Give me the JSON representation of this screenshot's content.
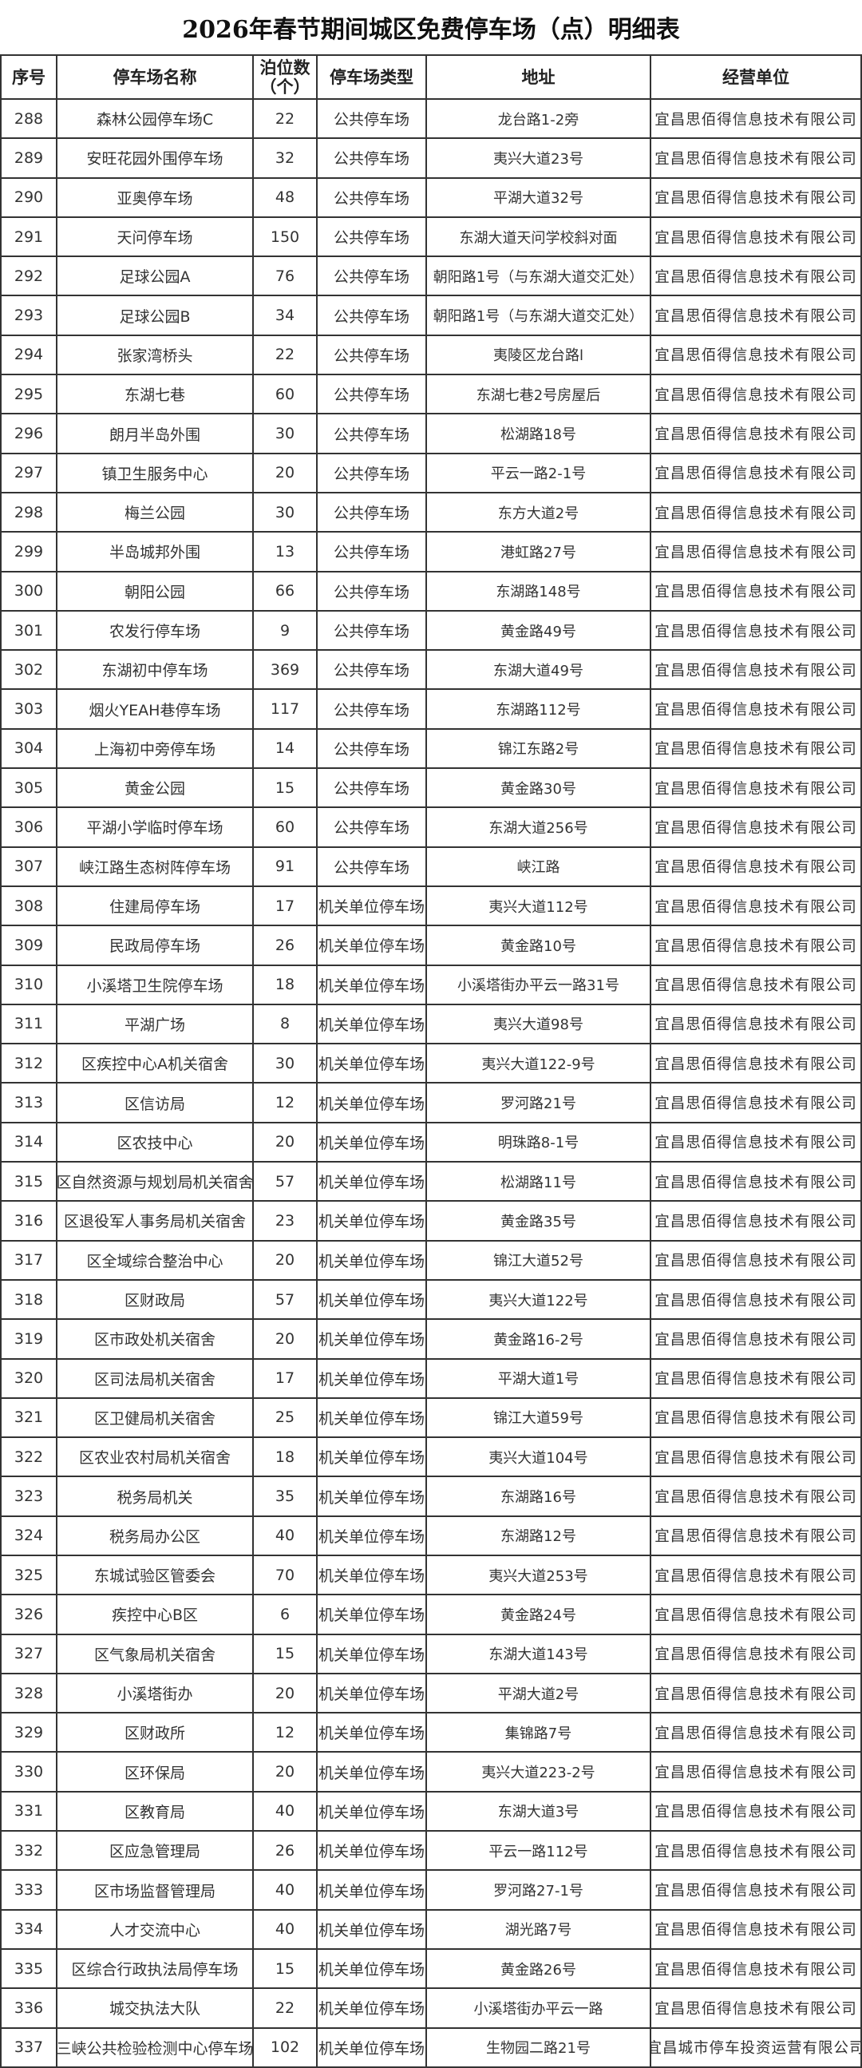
{
  "title": "2026年春节期间城区免费停车场（点）明细表",
  "headers": {
    "index": "序号",
    "name": "停车场名称",
    "spaces_line1": "泊位数",
    "spaces_line2": "（个）",
    "type": "停车场类型",
    "address": "地址",
    "operator": "经营单位"
  },
  "rows": [
    [
      "288",
      "森林公园停车场C",
      "22",
      "公共停车场",
      "龙台路1-2旁",
      "宜昌思佰得信息技术有限公司"
    ],
    [
      "289",
      "安旺花园外围停车场",
      "32",
      "公共停车场",
      "夷兴大道23号",
      "宜昌思佰得信息技术有限公司"
    ],
    [
      "290",
      "亚奥停车场",
      "48",
      "公共停车场",
      "平湖大道32号",
      "宜昌思佰得信息技术有限公司"
    ],
    [
      "291",
      "天问停车场",
      "150",
      "公共停车场",
      "东湖大道天问学校斜对面",
      "宜昌思佰得信息技术有限公司"
    ],
    [
      "292",
      "足球公园A",
      "76",
      "公共停车场",
      "朝阳路1号（与东湖大道交汇处）",
      "宜昌思佰得信息技术有限公司"
    ],
    [
      "293",
      "足球公园B",
      "34",
      "公共停车场",
      "朝阳路1号（与东湖大道交汇处）",
      "宜昌思佰得信息技术有限公司"
    ],
    [
      "294",
      "张家湾桥头",
      "22",
      "公共停车场",
      "夷陵区龙台路l",
      "宜昌思佰得信息技术有限公司"
    ],
    [
      "295",
      "东湖七巷",
      "60",
      "公共停车场",
      "东湖七巷2号房屋后",
      "宜昌思佰得信息技术有限公司"
    ],
    [
      "296",
      "朗月半岛外围",
      "30",
      "公共停车场",
      "松湖路18号",
      "宜昌思佰得信息技术有限公司"
    ],
    [
      "297",
      "镇卫生服务中心",
      "20",
      "公共停车场",
      "平云一路2-1号",
      "宜昌思佰得信息技术有限公司"
    ],
    [
      "298",
      "梅兰公园",
      "30",
      "公共停车场",
      "东方大道2号",
      "宜昌思佰得信息技术有限公司"
    ],
    [
      "299",
      "半岛城邦外围",
      "13",
      "公共停车场",
      "港虹路27号",
      "宜昌思佰得信息技术有限公司"
    ],
    [
      "300",
      "朝阳公园",
      "66",
      "公共停车场",
      "东湖路148号",
      "宜昌思佰得信息技术有限公司"
    ],
    [
      "301",
      "农发行停车场",
      "9",
      "公共停车场",
      "黄金路49号",
      "宜昌思佰得信息技术有限公司"
    ],
    [
      "302",
      "东湖初中停车场",
      "369",
      "公共停车场",
      "东湖大道49号",
      "宜昌思佰得信息技术有限公司"
    ],
    [
      "303",
      "烟火YEAH巷停车场",
      "117",
      "公共停车场",
      "东湖路112号",
      "宜昌思佰得信息技术有限公司"
    ],
    [
      "304",
      "上海初中旁停车场",
      "14",
      "公共停车场",
      "锦江东路2号",
      "宜昌思佰得信息技术有限公司"
    ],
    [
      "305",
      "黄金公园",
      "15",
      "公共停车场",
      "黄金路30号",
      "宜昌思佰得信息技术有限公司"
    ],
    [
      "306",
      "平湖小学临时停车场",
      "60",
      "公共停车场",
      "东湖大道256号",
      "宜昌思佰得信息技术有限公司"
    ],
    [
      "307",
      "峡江路生态树阵停车场",
      "91",
      "公共停车场",
      "峡江路",
      "宜昌思佰得信息技术有限公司"
    ],
    [
      "308",
      "住建局停车场",
      "17",
      "机关单位停车场",
      "夷兴大道112号",
      "宜昌思佰得信息技术有限公司"
    ],
    [
      "309",
      "民政局停车场",
      "26",
      "机关单位停车场",
      "黄金路10号",
      "宜昌思佰得信息技术有限公司"
    ],
    [
      "310",
      "小溪塔卫生院停车场",
      "18",
      "机关单位停车场",
      "小溪塔街办平云一路31号",
      "宜昌思佰得信息技术有限公司"
    ],
    [
      "311",
      "平湖广场",
      "8",
      "机关单位停车场",
      "夷兴大道98号",
      "宜昌思佰得信息技术有限公司"
    ],
    [
      "312",
      "区疾控中心A机关宿舍",
      "30",
      "机关单位停车场",
      "夷兴大道122-9号",
      "宜昌思佰得信息技术有限公司"
    ],
    [
      "313",
      "区信访局",
      "12",
      "机关单位停车场",
      "罗河路21号",
      "宜昌思佰得信息技术有限公司"
    ],
    [
      "314",
      "区农技中心",
      "20",
      "机关单位停车场",
      "明珠路8-1号",
      "宜昌思佰得信息技术有限公司"
    ],
    [
      "315",
      "区自然资源与规划局机关宿舍",
      "57",
      "机关单位停车场",
      "松湖路11号",
      "宜昌思佰得信息技术有限公司"
    ],
    [
      "316",
      "区退役军人事务局机关宿舍",
      "23",
      "机关单位停车场",
      "黄金路35号",
      "宜昌思佰得信息技术有限公司"
    ],
    [
      "317",
      "区全域综合整治中心",
      "20",
      "机关单位停车场",
      "锦江大道52号",
      "宜昌思佰得信息技术有限公司"
    ],
    [
      "318",
      "区财政局",
      "57",
      "机关单位停车场",
      "夷兴大道122号",
      "宜昌思佰得信息技术有限公司"
    ],
    [
      "319",
      "区市政处机关宿舍",
      "20",
      "机关单位停车场",
      "黄金路16-2号",
      "宜昌思佰得信息技术有限公司"
    ],
    [
      "320",
      "区司法局机关宿舍",
      "17",
      "机关单位停车场",
      "平湖大道1号",
      "宜昌思佰得信息技术有限公司"
    ],
    [
      "321",
      "区卫健局机关宿舍",
      "25",
      "机关单位停车场",
      "锦江大道59号",
      "宜昌思佰得信息技术有限公司"
    ],
    [
      "322",
      "区农业农村局机关宿舍",
      "18",
      "机关单位停车场",
      "夷兴大道104号",
      "宜昌思佰得信息技术有限公司"
    ],
    [
      "323",
      "税务局机关",
      "35",
      "机关单位停车场",
      "东湖路16号",
      "宜昌思佰得信息技术有限公司"
    ],
    [
      "324",
      "税务局办公区",
      "40",
      "机关单位停车场",
      "东湖路12号",
      "宜昌思佰得信息技术有限公司"
    ],
    [
      "325",
      "东城试验区管委会",
      "70",
      "机关单位停车场",
      "夷兴大道253号",
      "宜昌思佰得信息技术有限公司"
    ],
    [
      "326",
      "疾控中心B区",
      "6",
      "机关单位停车场",
      "黄金路24号",
      "宜昌思佰得信息技术有限公司"
    ],
    [
      "327",
      "区气象局机关宿舍",
      "15",
      "机关单位停车场",
      "东湖大道143号",
      "宜昌思佰得信息技术有限公司"
    ],
    [
      "328",
      "小溪塔街办",
      "20",
      "机关单位停车场",
      "平湖大道2号",
      "宜昌思佰得信息技术有限公司"
    ],
    [
      "329",
      "区财政所",
      "12",
      "机关单位停车场",
      "集锦路7号",
      "宜昌思佰得信息技术有限公司"
    ],
    [
      "330",
      "区环保局",
      "20",
      "机关单位停车场",
      "夷兴大道223-2号",
      "宜昌思佰得信息技术有限公司"
    ],
    [
      "331",
      "区教育局",
      "40",
      "机关单位停车场",
      "东湖大道3号",
      "宜昌思佰得信息技术有限公司"
    ],
    [
      "332",
      "区应急管理局",
      "26",
      "机关单位停车场",
      "平云一路112号",
      "宜昌思佰得信息技术有限公司"
    ],
    [
      "333",
      "区市场监督管理局",
      "40",
      "机关单位停车场",
      "罗河路27-1号",
      "宜昌思佰得信息技术有限公司"
    ],
    [
      "334",
      "人才交流中心",
      "40",
      "机关单位停车场",
      "湖光路7号",
      "宜昌思佰得信息技术有限公司"
    ],
    [
      "335",
      "区综合行政执法局停车场",
      "15",
      "机关单位停车场",
      "黄金路26号",
      "宜昌思佰得信息技术有限公司"
    ],
    [
      "336",
      "城交执法大队",
      "22",
      "机关单位停车场",
      "小溪塔街办平云一路",
      "宜昌思佰得信息技术有限公司"
    ],
    [
      "337",
      "三峡公共检验检测中心停车场",
      "102",
      "机关单位停车场",
      "生物园二路21号",
      "宜昌城市停车投资运营有限公司"
    ]
  ]
}
